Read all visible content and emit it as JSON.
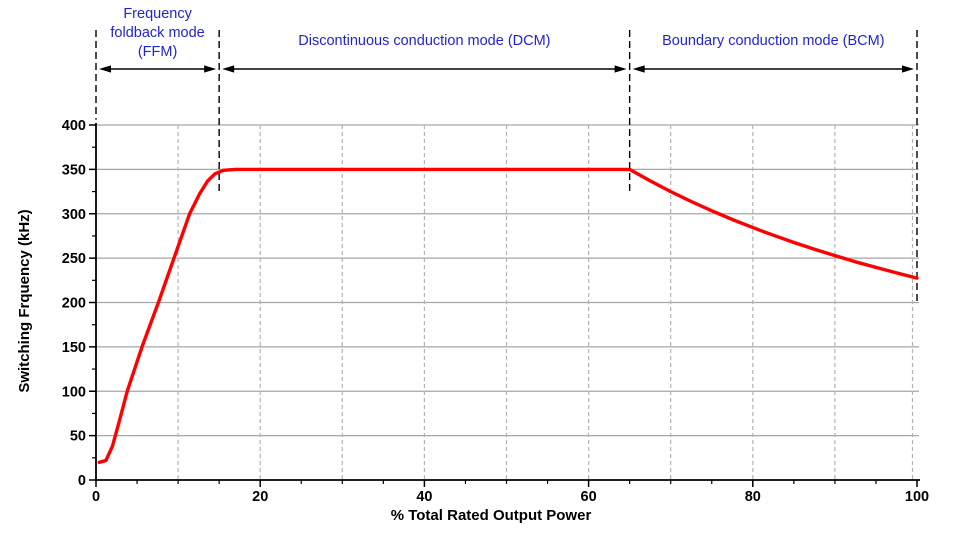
{
  "chart_data": {
    "type": "line",
    "xlabel": "% Total Rated Output Power",
    "ylabel": "Switching Frquency (kHz)",
    "xlim": [
      0,
      100
    ],
    "ylim": [
      0,
      400
    ],
    "x_major_ticks": [
      0,
      20,
      40,
      60,
      80,
      100
    ],
    "x_minor_tick_step": 5,
    "x_grid_step": 10,
    "y_major_ticks": [
      0,
      50,
      100,
      150,
      200,
      250,
      300,
      350,
      400
    ],
    "y_minor_tick_step": 25,
    "grid": {
      "horizontal_style": "solid",
      "vertical_style": "dashed"
    },
    "legend": "none",
    "series": [
      {
        "name": "Switching frequency",
        "color": "#FF0000",
        "points": [
          [
            0.4,
            20
          ],
          [
            1.2,
            22
          ],
          [
            2,
            38
          ],
          [
            2.8,
            65
          ],
          [
            3.8,
            100
          ],
          [
            5.6,
            150
          ],
          [
            7.6,
            200
          ],
          [
            9.5,
            250
          ],
          [
            11.4,
            300
          ],
          [
            12.6,
            322
          ],
          [
            13.6,
            337
          ],
          [
            14.5,
            345
          ],
          [
            15.5,
            349
          ],
          [
            17,
            350
          ],
          [
            65,
            350
          ],
          [
            67.5,
            337.0
          ],
          [
            70,
            325.0
          ],
          [
            72.5,
            313.8
          ],
          [
            75,
            303.3
          ],
          [
            77.5,
            293.5
          ],
          [
            80,
            284.4
          ],
          [
            82.5,
            275.8
          ],
          [
            85,
            267.6
          ],
          [
            87.5,
            260.0
          ],
          [
            90,
            252.8
          ],
          [
            92.5,
            245.9
          ],
          [
            95,
            239.5
          ],
          [
            97.5,
            233.3
          ],
          [
            100,
            227.5
          ]
        ]
      }
    ],
    "plateau_khz": 350,
    "regions": [
      {
        "name": "FFM",
        "label_lines": [
          "Frequency",
          "foldback mode",
          "(FFM)"
        ],
        "x_start": 0,
        "x_end": 15
      },
      {
        "name": "DCM",
        "label_lines": [
          "Discontinuous conduction mode (DCM)"
        ],
        "x_start": 15,
        "x_end": 65
      },
      {
        "name": "BCM",
        "label_lines": [
          "Boundary conduction mode (BCM)"
        ],
        "x_start": 65,
        "x_end": 100
      }
    ],
    "boundary_lines": [
      {
        "x": 0,
        "end_khz": 406
      },
      {
        "x": 15,
        "end_khz": 323
      },
      {
        "x": 65,
        "end_khz": 323
      },
      {
        "x": 100,
        "end_khz": 201
      }
    ],
    "colors": {
      "curve": "#FF0000",
      "grid_solid": "#A6A6A6",
      "grid_dashed": "#B3B3B3",
      "axis": "#000000",
      "annotation_line": "#000000",
      "region_label": "#2424CE",
      "background": "#FFFFFF"
    }
  }
}
